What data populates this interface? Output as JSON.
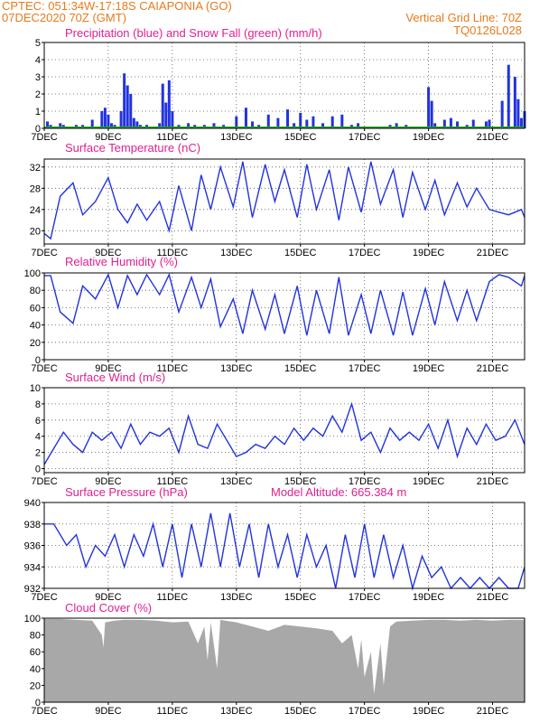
{
  "header": {
    "line1": "CPTEC:   051:34W-17:18S   CAIAPONIA (GO)",
    "line2": "07DEC2020 70Z (GMT)",
    "vgrid": "Vertical Grid Line: 70Z",
    "code": "TQ0126L028"
  },
  "colors": {
    "header": "#e87a1c",
    "title": "#e0208f",
    "series": "#2233dd",
    "snow": "#22aa22",
    "cloud": "#a8a8a8"
  },
  "x_ticks": [
    "7DEC",
    "9DEC",
    "11DEC",
    "13DEC",
    "15DEC",
    "17DEC",
    "19DEC",
    "21DEC"
  ],
  "x_tick_days": [
    7,
    9,
    11,
    13,
    15,
    17,
    19,
    21
  ],
  "x_range": [
    7,
    22
  ],
  "chart_data": [
    {
      "id": "precip",
      "type": "bar",
      "title": "Precipitation (blue) and Snow Fall (green) (mm/h)",
      "ylim": [
        0,
        5
      ],
      "yticks": [
        0,
        1,
        2,
        3,
        4,
        5
      ],
      "grid": true,
      "series": [
        {
          "name": "Precipitation",
          "color": "#2233dd",
          "x": [
            7.1,
            7.2,
            7.3,
            7.5,
            7.6,
            7.8,
            8.0,
            8.2,
            8.5,
            8.8,
            8.9,
            9.0,
            9.1,
            9.2,
            9.3,
            9.4,
            9.5,
            9.6,
            9.7,
            9.8,
            9.9,
            10.0,
            10.1,
            10.2,
            10.3,
            10.6,
            10.7,
            10.8,
            10.9,
            11.0,
            11.2,
            11.5,
            11.7,
            12.0,
            12.3,
            12.6,
            12.8,
            13.0,
            13.3,
            13.5,
            13.7,
            14.0,
            14.3,
            14.6,
            14.8,
            15.0,
            15.2,
            15.4,
            15.7,
            16.0,
            16.3,
            16.6,
            16.8,
            17.0,
            17.3,
            17.6,
            17.8,
            18.0,
            18.3,
            18.6,
            18.9,
            19.0,
            19.1,
            19.2,
            19.5,
            19.7,
            19.9,
            20.2,
            20.4,
            20.6,
            20.8,
            20.9,
            21.3,
            21.5,
            21.7,
            21.8,
            21.9,
            22.0
          ],
          "values": [
            0.4,
            0.2,
            0.1,
            0.3,
            0.2,
            0.1,
            0.2,
            0.2,
            0.5,
            1.0,
            1.2,
            0.8,
            0.3,
            0.2,
            0.1,
            1.0,
            3.2,
            2.5,
            2.0,
            0.6,
            0.4,
            0.2,
            0.1,
            0.2,
            0.1,
            0.3,
            2.6,
            1.5,
            2.8,
            1.0,
            0.2,
            0.3,
            0.2,
            0.2,
            0.3,
            0.2,
            0.1,
            0.7,
            1.2,
            0.4,
            0.2,
            0.8,
            0.6,
            1.1,
            0.3,
            0.9,
            0.5,
            0.7,
            0.3,
            0.7,
            0.8,
            0.2,
            0.3,
            0.1,
            0.1,
            0.1,
            0.2,
            0.3,
            0.2,
            0.1,
            0.1,
            2.4,
            1.6,
            0.3,
            0.5,
            0.6,
            0.4,
            0.2,
            0.5,
            0.1,
            0.4,
            0.5,
            1.6,
            3.7,
            3.0,
            1.7,
            0.6,
            1.0
          ]
        },
        {
          "name": "Snow Fall",
          "color": "#22aa22",
          "x": [
            7,
            22
          ],
          "values": [
            0,
            0
          ]
        }
      ]
    },
    {
      "id": "temp",
      "type": "line",
      "title": "Surface Temperature (nC)",
      "ylim": [
        17.5,
        33.5
      ],
      "yticks": [
        20,
        24,
        28,
        32
      ],
      "grid": true,
      "series": [
        {
          "name": "",
          "color": "#2233dd",
          "x": [
            7.0,
            7.2,
            7.5,
            7.9,
            8.2,
            8.6,
            9.0,
            9.3,
            9.6,
            9.9,
            10.2,
            10.6,
            10.9,
            11.2,
            11.6,
            11.9,
            12.2,
            12.5,
            12.9,
            13.2,
            13.5,
            13.9,
            14.2,
            14.5,
            14.9,
            15.2,
            15.5,
            15.9,
            16.2,
            16.5,
            16.9,
            17.2,
            17.5,
            17.9,
            18.2,
            18.5,
            18.9,
            19.2,
            19.5,
            19.9,
            20.2,
            20.5,
            20.9,
            21.2,
            21.5,
            21.9,
            22.0
          ],
          "values": [
            19.5,
            18.5,
            26.5,
            29.0,
            23.0,
            25.5,
            30.0,
            24.0,
            21.5,
            25.0,
            22.0,
            25.5,
            20.0,
            28.5,
            20.0,
            30.5,
            24.0,
            32.0,
            24.5,
            33.0,
            22.5,
            32.5,
            25.5,
            31.5,
            22.5,
            32.5,
            24.0,
            31.5,
            22.0,
            32.0,
            23.5,
            33.0,
            25.0,
            31.5,
            22.5,
            31.0,
            24.0,
            29.5,
            23.0,
            29.0,
            24.5,
            28.0,
            24.0,
            23.5,
            23.0,
            24.0,
            22.5
          ]
        }
      ]
    },
    {
      "id": "rh",
      "type": "line",
      "title": "Relative Humidity (%)",
      "ylim": [
        0,
        100
      ],
      "yticks": [
        0,
        20,
        40,
        60,
        80,
        100
      ],
      "grid": true,
      "series": [
        {
          "name": "",
          "color": "#2233dd",
          "x": [
            7.0,
            7.2,
            7.5,
            7.9,
            8.2,
            8.6,
            9.0,
            9.3,
            9.6,
            9.9,
            10.2,
            10.6,
            10.9,
            11.2,
            11.6,
            11.9,
            12.2,
            12.5,
            12.9,
            13.2,
            13.5,
            13.9,
            14.2,
            14.5,
            14.9,
            15.2,
            15.5,
            15.9,
            16.2,
            16.5,
            16.9,
            17.2,
            17.5,
            17.9,
            18.2,
            18.5,
            18.9,
            19.2,
            19.5,
            19.9,
            20.2,
            20.5,
            20.9,
            21.2,
            21.5,
            21.9,
            22.0
          ],
          "values": [
            97,
            97,
            55,
            42,
            85,
            70,
            98,
            60,
            97,
            75,
            98,
            75,
            98,
            55,
            95,
            60,
            93,
            38,
            70,
            30,
            80,
            35,
            75,
            30,
            85,
            28,
            80,
            30,
            95,
            28,
            75,
            30,
            80,
            28,
            78,
            28,
            82,
            40,
            90,
            45,
            80,
            45,
            90,
            98,
            95,
            85,
            97
          ]
        }
      ]
    },
    {
      "id": "wind",
      "type": "line",
      "title": "Surface Wind (m/s)",
      "ylim": [
        -0.5,
        10
      ],
      "yticks": [
        0,
        2,
        4,
        6,
        8,
        10
      ],
      "grid": true,
      "series": [
        {
          "name": "",
          "color": "#2233dd",
          "x": [
            7.0,
            7.3,
            7.6,
            7.9,
            8.2,
            8.5,
            8.8,
            9.1,
            9.4,
            9.7,
            10.0,
            10.3,
            10.6,
            10.9,
            11.2,
            11.5,
            11.8,
            12.1,
            12.4,
            12.7,
            13.0,
            13.3,
            13.6,
            13.9,
            14.2,
            14.5,
            14.8,
            15.1,
            15.4,
            15.7,
            16.0,
            16.3,
            16.6,
            16.9,
            17.2,
            17.5,
            17.8,
            18.1,
            18.4,
            18.7,
            19.0,
            19.3,
            19.6,
            19.9,
            20.2,
            20.5,
            20.8,
            21.1,
            21.4,
            21.7,
            22.0
          ],
          "values": [
            0.5,
            2.5,
            4.5,
            3.0,
            2.0,
            4.5,
            3.5,
            4.5,
            2.5,
            5.5,
            3.0,
            4.5,
            4.0,
            5.0,
            2.0,
            6.5,
            3.0,
            2.5,
            5.5,
            3.5,
            1.5,
            2.0,
            3.0,
            2.5,
            4.0,
            3.0,
            5.0,
            3.5,
            5.0,
            4.0,
            6.5,
            4.5,
            8.0,
            3.5,
            4.5,
            2.0,
            5.0,
            3.5,
            4.5,
            3.5,
            5.5,
            2.5,
            6.0,
            1.5,
            5.0,
            3.0,
            5.5,
            3.5,
            4.0,
            6.0,
            3.0
          ]
        }
      ]
    },
    {
      "id": "pres",
      "type": "line",
      "title": "Surface Pressure (hPa)",
      "annotation": "Model Altitude: 665.384 m",
      "ylim": [
        932,
        940
      ],
      "yticks": [
        932,
        934,
        936,
        938,
        940
      ],
      "grid": true,
      "series": [
        {
          "name": "",
          "color": "#2233dd",
          "x": [
            7.0,
            7.3,
            7.7,
            8.0,
            8.3,
            8.6,
            8.9,
            9.2,
            9.5,
            9.8,
            10.1,
            10.4,
            10.7,
            11.0,
            11.3,
            11.6,
            11.9,
            12.2,
            12.5,
            12.8,
            13.1,
            13.4,
            13.7,
            14.0,
            14.3,
            14.6,
            14.9,
            15.2,
            15.5,
            15.8,
            16.1,
            16.4,
            16.7,
            17.0,
            17.3,
            17.6,
            17.9,
            18.2,
            18.5,
            18.8,
            19.1,
            19.4,
            19.7,
            20.0,
            20.3,
            20.6,
            20.9,
            21.2,
            21.5,
            21.8,
            22.0
          ],
          "values": [
            938,
            938,
            936,
            937,
            934,
            936,
            935,
            937,
            934,
            937,
            935,
            938,
            934,
            938,
            933,
            938,
            934,
            939,
            934,
            939,
            934,
            938,
            933,
            938,
            934,
            937,
            933,
            937,
            934,
            936,
            932,
            937,
            933,
            938,
            933,
            937,
            933,
            936,
            932,
            935,
            933,
            934,
            932,
            933,
            932,
            933,
            932,
            933,
            932,
            932,
            934
          ]
        }
      ]
    },
    {
      "id": "cloud",
      "type": "area",
      "title": "Cloud Cover (%)",
      "ylim": [
        0,
        100
      ],
      "yticks": [
        0,
        20,
        40,
        60,
        80,
        100
      ],
      "grid": false,
      "series": [
        {
          "name": "",
          "color": "#a8a8a8",
          "x": [
            7.0,
            7.5,
            8.0,
            8.5,
            8.8,
            8.85,
            8.9,
            9.2,
            9.5,
            10.0,
            10.5,
            11.0,
            11.5,
            11.8,
            12.0,
            12.1,
            12.2,
            12.4,
            12.5,
            13.0,
            13.5,
            14.0,
            14.5,
            15.0,
            15.5,
            16.0,
            16.3,
            16.6,
            16.8,
            16.9,
            17.0,
            17.2,
            17.3,
            17.5,
            17.6,
            17.8,
            18.0,
            18.5,
            19.0,
            19.5,
            20.0,
            20.5,
            21.0,
            21.5,
            22.0
          ],
          "values": [
            99,
            99,
            98,
            97,
            80,
            65,
            95,
            97,
            98,
            98,
            97,
            95,
            96,
            70,
            90,
            50,
            95,
            40,
            98,
            95,
            90,
            85,
            92,
            90,
            88,
            85,
            70,
            80,
            40,
            75,
            30,
            60,
            10,
            70,
            20,
            90,
            96,
            97,
            98,
            98,
            97,
            98,
            97,
            98,
            98
          ]
        }
      ]
    }
  ]
}
